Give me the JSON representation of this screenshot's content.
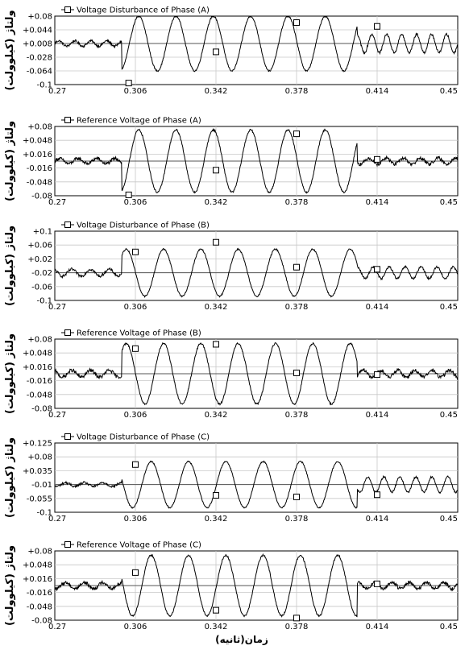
{
  "figure": {
    "x_axis_label": "زمان(ثانیه)",
    "y_axis_label": "ولتاژ (کیلوولت)"
  },
  "chart_data": [
    {
      "type": "line",
      "legend": "Voltage Disturbance of Phase (A)",
      "x_ticks": [
        "0.27",
        "0.306",
        "0.342",
        "0.378",
        "0.414",
        "0.45"
      ],
      "y_ticks": [
        "+0.08",
        "+0.044",
        "+0.008",
        "-0.028",
        "-0.064",
        "-0.1"
      ],
      "xlim": [
        0.27,
        0.45
      ],
      "ylim": [
        -0.1,
        0.08
      ],
      "baseline": 0.008,
      "phase": 0.0,
      "segments": [
        {
          "x": [
            0.27,
            0.3
          ],
          "amplitude": 0.007,
          "freq": 140,
          "noise": 0.003
        },
        {
          "x": [
            0.3,
            0.405
          ],
          "amplitude": 0.072,
          "freq": 60,
          "noise": 0.002
        },
        {
          "x": [
            0.405,
            0.45
          ],
          "amplitude": 0.024,
          "freq": 150,
          "noise": 0.003
        }
      ],
      "markers": [
        {
          "x": 0.303,
          "y": -0.096
        },
        {
          "x": 0.342,
          "y": -0.014
        },
        {
          "x": 0.378,
          "y": 0.063
        },
        {
          "x": 0.414,
          "y": 0.053
        }
      ]
    },
    {
      "type": "line",
      "legend": "Reference Voltage of Phase (A)",
      "x_ticks": [
        "0.27",
        "0.306",
        "0.342",
        "0.378",
        "0.414",
        "0.45"
      ],
      "y_ticks": [
        "+0.08",
        "+0.048",
        "+0.016",
        "-0.016",
        "-0.048",
        "-0.08"
      ],
      "xlim": [
        0.27,
        0.45
      ],
      "ylim": [
        -0.08,
        0.08
      ],
      "baseline": 0.0,
      "phase": 0.0,
      "segments": [
        {
          "x": [
            0.27,
            0.3
          ],
          "amplitude": 0.006,
          "freq": 120,
          "noise": 0.004
        },
        {
          "x": [
            0.3,
            0.405
          ],
          "amplitude": 0.072,
          "freq": 60,
          "noise": 0.002
        },
        {
          "x": [
            0.405,
            0.45
          ],
          "amplitude": 0.007,
          "freq": 130,
          "noise": 0.004
        }
      ],
      "markers": [
        {
          "x": 0.303,
          "y": -0.078
        },
        {
          "x": 0.342,
          "y": -0.021
        },
        {
          "x": 0.378,
          "y": 0.063
        },
        {
          "x": 0.414,
          "y": 0.004
        }
      ]
    },
    {
      "type": "line",
      "legend": "Voltage Disturbance of Phase (B)",
      "x_ticks": [
        "0.27",
        "0.306",
        "0.342",
        "0.378",
        "0.414",
        "0.45"
      ],
      "y_ticks": [
        "+0.1",
        "+0.06",
        "+0.02",
        "-0.02",
        "-0.06",
        "-0.1"
      ],
      "xlim": [
        0.27,
        0.45
      ],
      "ylim": [
        -0.1,
        0.1
      ],
      "baseline": -0.02,
      "phase": 2.1,
      "segments": [
        {
          "x": [
            0.27,
            0.3
          ],
          "amplitude": 0.01,
          "freq": 120,
          "noise": 0.004
        },
        {
          "x": [
            0.3,
            0.405
          ],
          "amplitude": 0.068,
          "freq": 60,
          "noise": 0.002
        },
        {
          "x": [
            0.405,
            0.45
          ],
          "amplitude": 0.017,
          "freq": 140,
          "noise": 0.003
        }
      ],
      "markers": [
        {
          "x": 0.306,
          "y": 0.04
        },
        {
          "x": 0.342,
          "y": 0.068
        },
        {
          "x": 0.378,
          "y": -0.004
        },
        {
          "x": 0.414,
          "y": -0.01
        }
      ]
    },
    {
      "type": "line",
      "legend": "Reference Voltage of Phase (B)",
      "x_ticks": [
        "0.27",
        "0.306",
        "0.342",
        "0.378",
        "0.414",
        "0.45"
      ],
      "y_ticks": [
        "+0.08",
        "+0.048",
        "+0.016",
        "-0.016",
        "-0.048",
        "-0.08"
      ],
      "xlim": [
        0.27,
        0.45
      ],
      "ylim": [
        -0.08,
        0.08
      ],
      "baseline": 0.0,
      "phase": 2.1,
      "segments": [
        {
          "x": [
            0.27,
            0.3
          ],
          "amplitude": 0.008,
          "freq": 120,
          "noise": 0.004
        },
        {
          "x": [
            0.3,
            0.405
          ],
          "amplitude": 0.07,
          "freq": 60,
          "noise": 0.002
        },
        {
          "x": [
            0.405,
            0.45
          ],
          "amplitude": 0.008,
          "freq": 130,
          "noise": 0.004
        }
      ],
      "markers": [
        {
          "x": 0.306,
          "y": 0.058
        },
        {
          "x": 0.342,
          "y": 0.068
        },
        {
          "x": 0.378,
          "y": 0.002
        },
        {
          "x": 0.414,
          "y": -0.002
        }
      ]
    },
    {
      "type": "line",
      "legend": "Voltage Disturbance of Phase (C)",
      "x_ticks": [
        "0.27",
        "0.306",
        "0.342",
        "0.378",
        "0.414",
        "0.45"
      ],
      "y_ticks": [
        "+0.125",
        "+0.08",
        "+0.035",
        "-0.01",
        "-0.055",
        "-0.1"
      ],
      "xlim": [
        0.27,
        0.45
      ],
      "ylim": [
        -0.1,
        0.125
      ],
      "baseline": -0.01,
      "phase": -2.1,
      "segments": [
        {
          "x": [
            0.27,
            0.3
          ],
          "amplitude": 0.006,
          "freq": 120,
          "noise": 0.004
        },
        {
          "x": [
            0.3,
            0.405
          ],
          "amplitude": 0.075,
          "freq": 60,
          "noise": 0.002
        },
        {
          "x": [
            0.405,
            0.45
          ],
          "amplitude": 0.025,
          "freq": 140,
          "noise": 0.003
        }
      ],
      "markers": [
        {
          "x": 0.306,
          "y": 0.055
        },
        {
          "x": 0.342,
          "y": -0.045
        },
        {
          "x": 0.378,
          "y": -0.05
        },
        {
          "x": 0.414,
          "y": -0.043
        }
      ]
    },
    {
      "type": "line",
      "legend": "Reference Voltage of Phase (C)",
      "x_ticks": [
        "0.27",
        "0.306",
        "0.342",
        "0.378",
        "0.414",
        "0.45"
      ],
      "y_ticks": [
        "+0.08",
        "+0.048",
        "+0.016",
        "-0.016",
        "-0.048",
        "-0.08"
      ],
      "xlim": [
        0.27,
        0.45
      ],
      "ylim": [
        -0.08,
        0.08
      ],
      "baseline": 0.0,
      "phase": -2.1,
      "segments": [
        {
          "x": [
            0.27,
            0.3
          ],
          "amplitude": 0.007,
          "freq": 120,
          "noise": 0.004
        },
        {
          "x": [
            0.3,
            0.405
          ],
          "amplitude": 0.07,
          "freq": 60,
          "noise": 0.002
        },
        {
          "x": [
            0.405,
            0.45
          ],
          "amplitude": 0.007,
          "freq": 130,
          "noise": 0.004
        }
      ],
      "markers": [
        {
          "x": 0.306,
          "y": 0.03
        },
        {
          "x": 0.342,
          "y": -0.057
        },
        {
          "x": 0.378,
          "y": -0.075
        },
        {
          "x": 0.414,
          "y": 0.004
        }
      ]
    }
  ]
}
